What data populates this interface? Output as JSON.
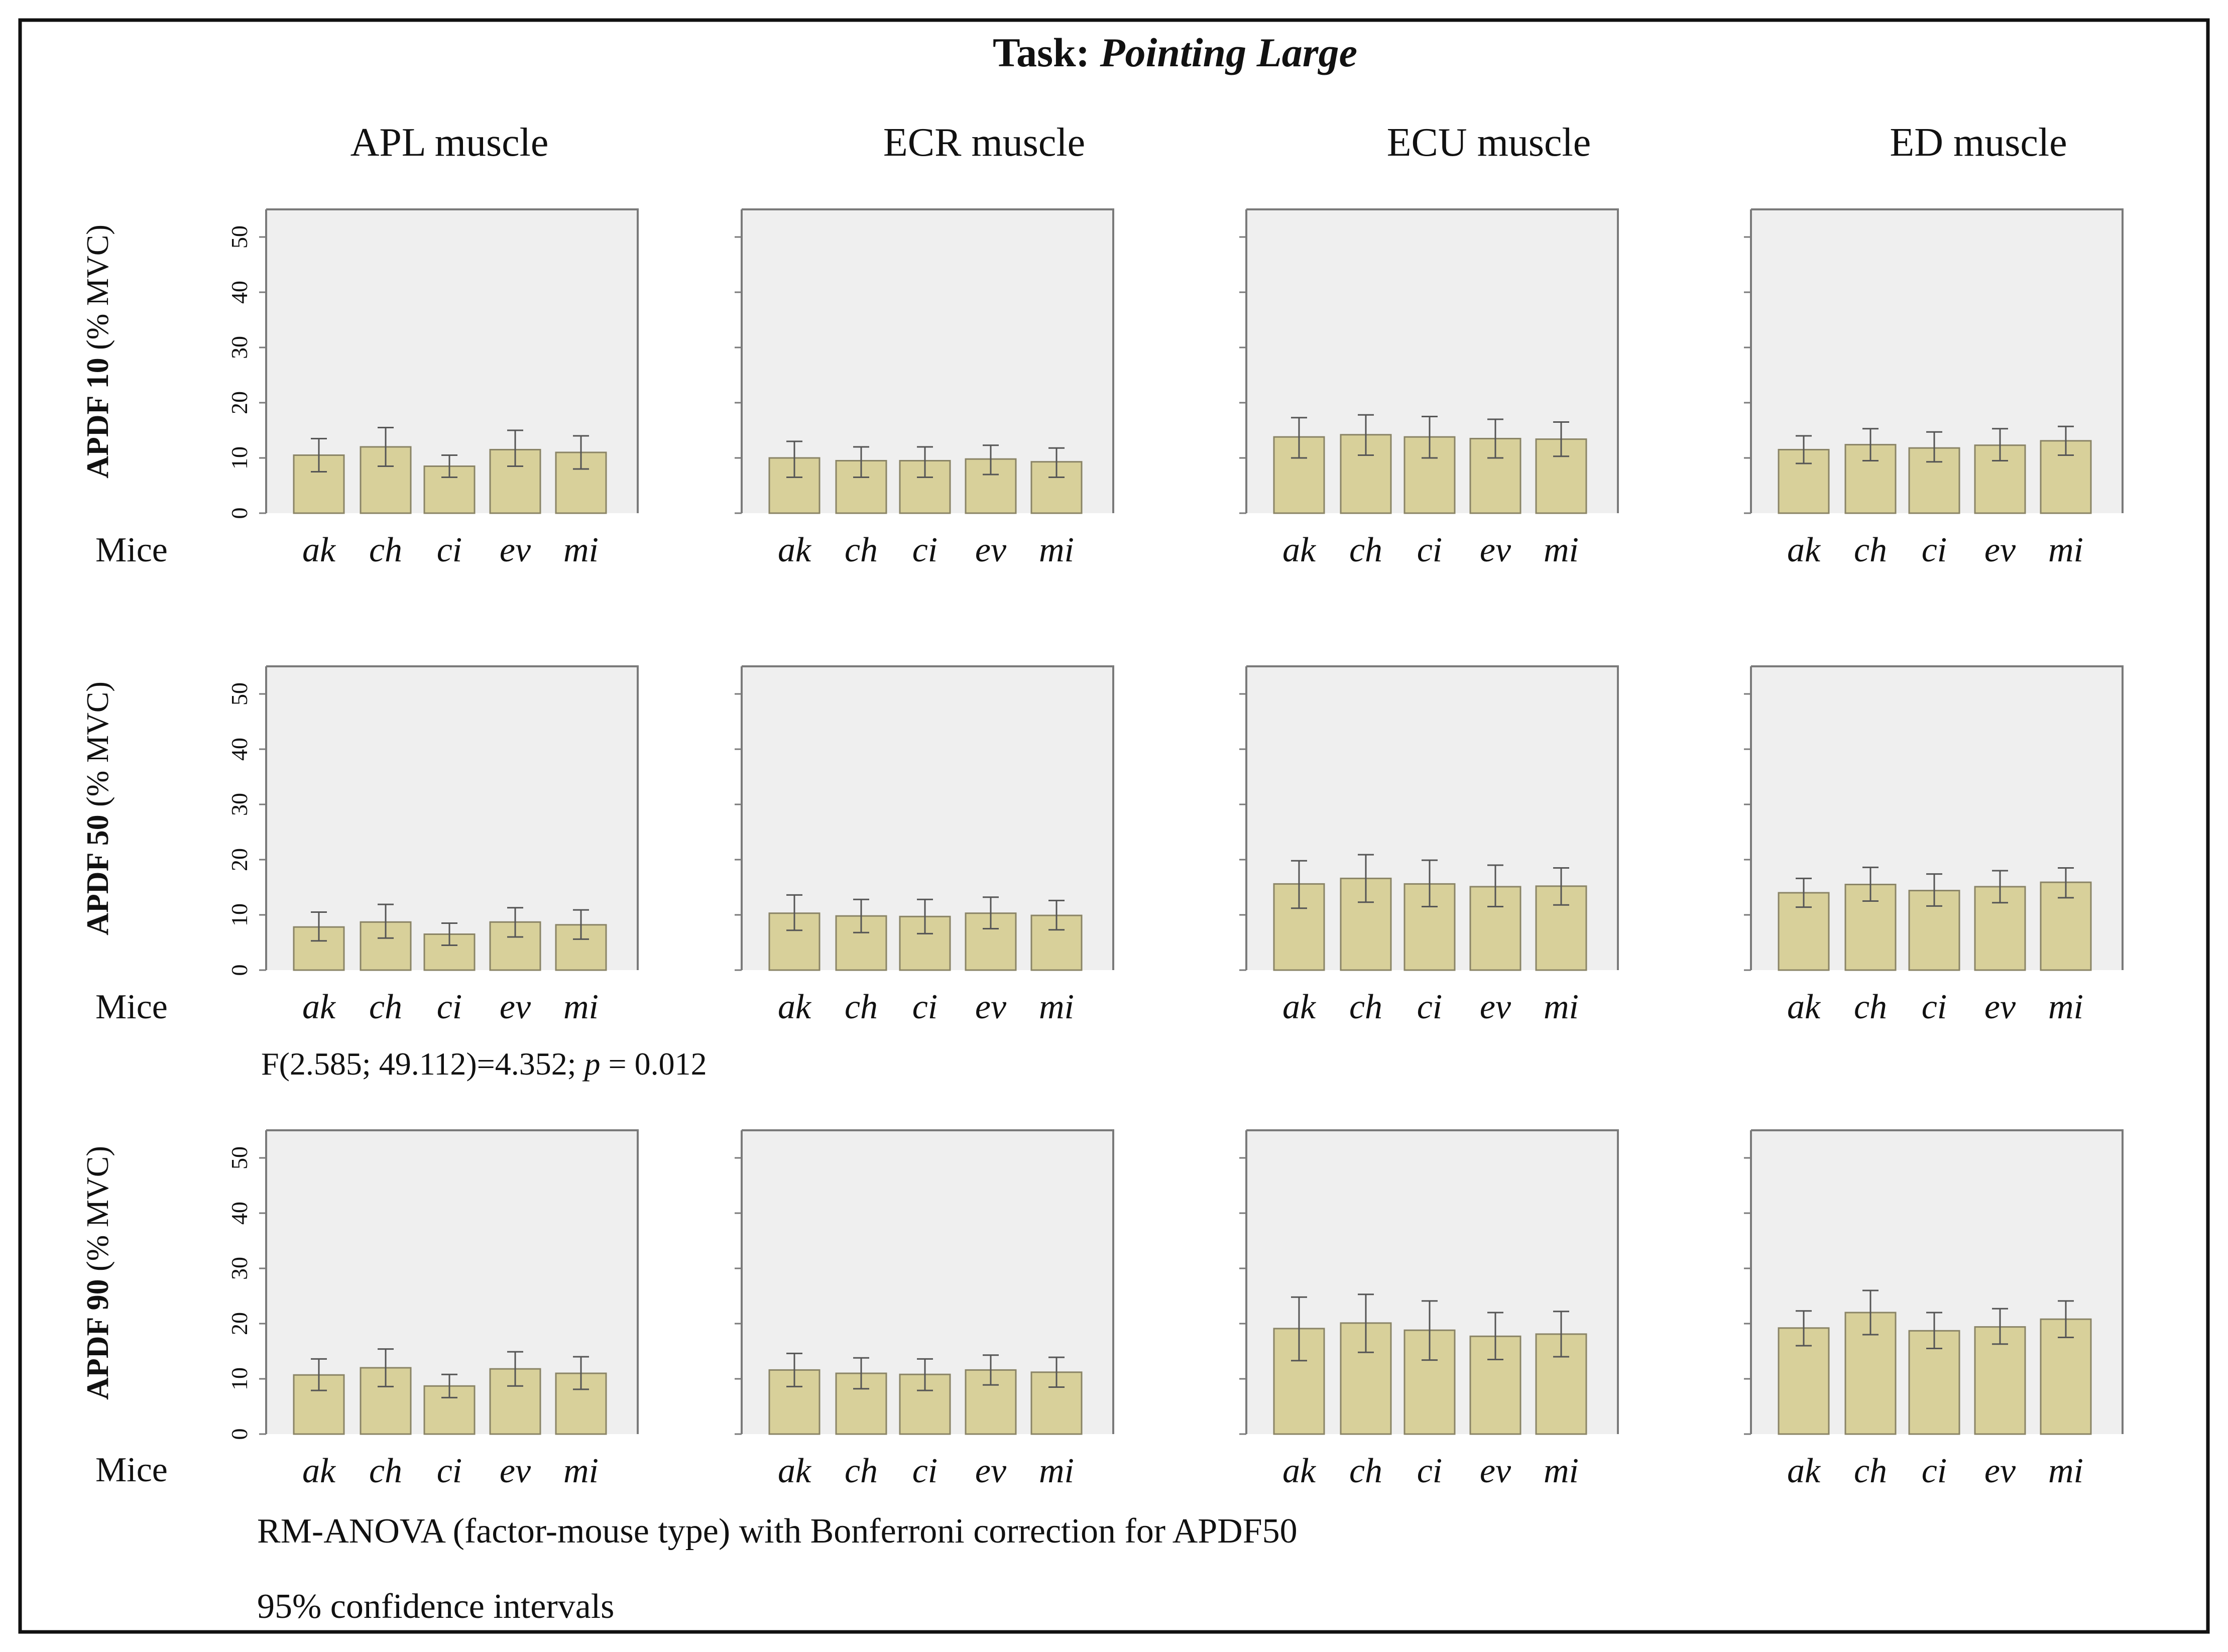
{
  "title": {
    "prefix": "Task: ",
    "italic": "Pointing Large"
  },
  "columns": [
    "APL muscle",
    "ECR muscle",
    "ECU muscle",
    "ED muscle"
  ],
  "rows": [
    {
      "bold": "APDF 10",
      "unit": " (% MVC)"
    },
    {
      "bold": "APDF 50",
      "unit": " (% MVC)"
    },
    {
      "bold": "APDF 90",
      "unit": " (% MVC)"
    }
  ],
  "x_axis_title": "Mice",
  "significance": {
    "pre": "F(2.585; 49.112)=4.352; ",
    "p": "p",
    "post": " = 0.012"
  },
  "footnotes": [
    "RM-ANOVA (factor-mouse type) with Bonferroni correction for APDF50",
    "95% confidence intervals"
  ],
  "colors": {
    "bar_fill": "#d8d09a",
    "bar_stroke": "#8a8466",
    "panel_bg": "#efefef",
    "panel_border": "#7a7a7a",
    "error_bar": "#555555",
    "frame": "#111111",
    "text": "#111111"
  },
  "chart_data": {
    "type": "bar",
    "categories": [
      "ak",
      "ch",
      "ci",
      "ev",
      "mi"
    ],
    "ylim": [
      0,
      55
    ],
    "yticks": [
      0,
      10,
      20,
      30,
      40,
      50
    ],
    "ytick_labels": [
      "0",
      "10",
      "20",
      "30",
      "40",
      "50"
    ],
    "panels": [
      {
        "row": 0,
        "col": 0,
        "values": [
          10.5,
          12,
          8.5,
          11.5,
          11
        ],
        "ci_low": [
          7.5,
          8.5,
          6.5,
          8.5,
          8
        ],
        "ci_high": [
          13.5,
          15.5,
          10.5,
          15,
          14
        ]
      },
      {
        "row": 0,
        "col": 1,
        "values": [
          10,
          9.5,
          9.5,
          9.8,
          9.3
        ],
        "ci_low": [
          6.5,
          6.5,
          6.5,
          7,
          6.5
        ],
        "ci_high": [
          13,
          12,
          12,
          12.3,
          11.8
        ]
      },
      {
        "row": 0,
        "col": 2,
        "values": [
          13.8,
          14.2,
          13.8,
          13.5,
          13.4
        ],
        "ci_low": [
          10,
          10.5,
          10,
          10,
          10.3
        ],
        "ci_high": [
          17.3,
          17.8,
          17.5,
          17,
          16.5
        ]
      },
      {
        "row": 0,
        "col": 3,
        "values": [
          11.5,
          12.4,
          11.8,
          12.3,
          13.1
        ],
        "ci_low": [
          9,
          9.5,
          9.3,
          9.5,
          10.5
        ],
        "ci_high": [
          14,
          15.3,
          14.7,
          15.3,
          15.7
        ]
      },
      {
        "row": 1,
        "col": 0,
        "values": [
          7.8,
          8.7,
          6.5,
          8.7,
          8.2
        ],
        "ci_low": [
          5.3,
          5.8,
          4.5,
          6,
          5.6
        ],
        "ci_high": [
          10.5,
          11.9,
          8.5,
          11.3,
          10.9
        ]
      },
      {
        "row": 1,
        "col": 1,
        "values": [
          10.3,
          9.8,
          9.7,
          10.3,
          9.9
        ],
        "ci_low": [
          7.2,
          6.8,
          6.6,
          7.5,
          7.3
        ],
        "ci_high": [
          13.6,
          12.8,
          12.8,
          13.2,
          12.6
        ]
      },
      {
        "row": 1,
        "col": 2,
        "values": [
          15.6,
          16.6,
          15.6,
          15.1,
          15.2
        ],
        "ci_low": [
          11.2,
          12.3,
          11.5,
          11.5,
          11.8
        ],
        "ci_high": [
          19.8,
          20.9,
          19.9,
          19,
          18.5
        ]
      },
      {
        "row": 1,
        "col": 3,
        "values": [
          14,
          15.5,
          14.4,
          15.1,
          15.9
        ],
        "ci_low": [
          11.4,
          12.5,
          11.6,
          12.2,
          13.1
        ],
        "ci_high": [
          16.6,
          18.6,
          17.4,
          18,
          18.5
        ]
      },
      {
        "row": 2,
        "col": 0,
        "values": [
          10.7,
          12,
          8.7,
          11.8,
          11
        ],
        "ci_low": [
          7.9,
          8.6,
          6.6,
          8.7,
          8.1
        ],
        "ci_high": [
          13.6,
          15.4,
          10.8,
          14.9,
          14
        ]
      },
      {
        "row": 2,
        "col": 1,
        "values": [
          11.6,
          11,
          10.8,
          11.6,
          11.2
        ],
        "ci_low": [
          8.6,
          8.2,
          7.9,
          8.9,
          8.5
        ],
        "ci_high": [
          14.6,
          13.8,
          13.6,
          14.3,
          13.9
        ]
      },
      {
        "row": 2,
        "col": 2,
        "values": [
          19.1,
          20.1,
          18.8,
          17.7,
          18.1
        ],
        "ci_low": [
          13.3,
          14.8,
          13.4,
          13.5,
          14
        ],
        "ci_high": [
          24.8,
          25.3,
          24.1,
          22,
          22.2
        ]
      },
      {
        "row": 2,
        "col": 3,
        "values": [
          19.2,
          22,
          18.7,
          19.4,
          20.8
        ],
        "ci_low": [
          16,
          18,
          15.5,
          16.3,
          17.5
        ],
        "ci_high": [
          22.3,
          26,
          22,
          22.7,
          24.1
        ]
      }
    ]
  }
}
